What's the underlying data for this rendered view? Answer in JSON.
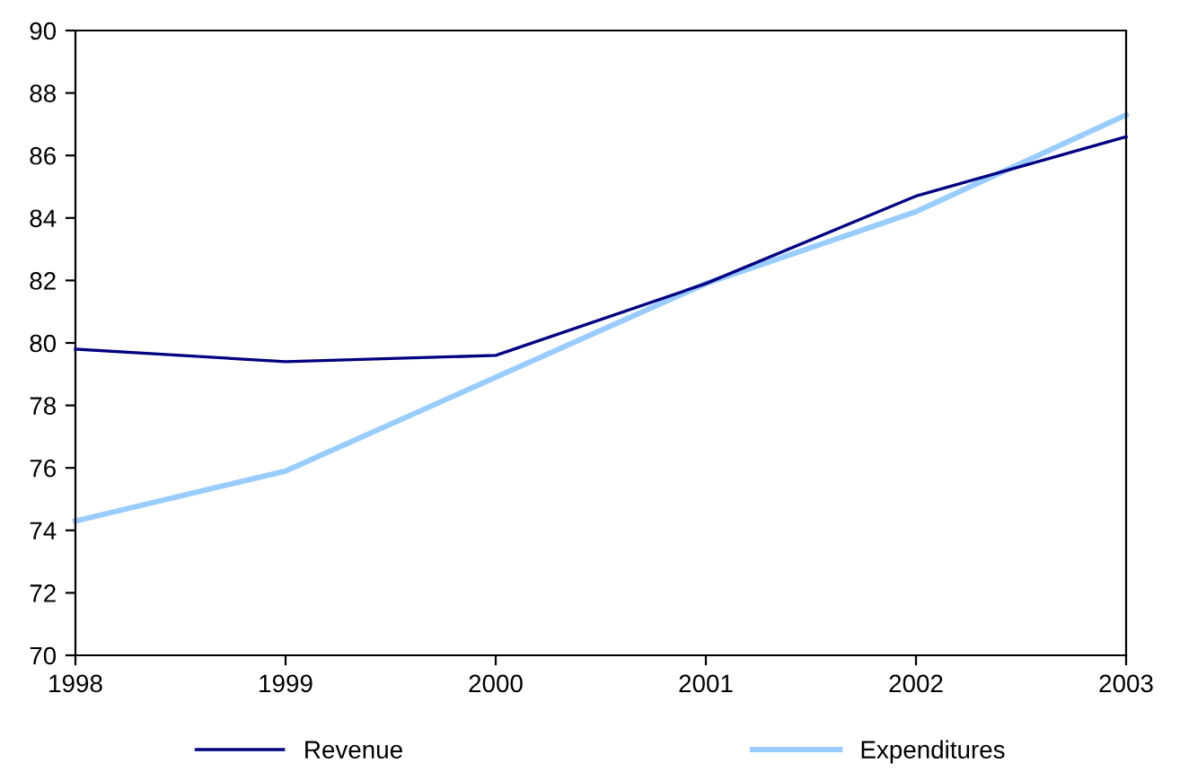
{
  "chart_data": {
    "type": "line",
    "x": [
      1998,
      1999,
      2000,
      2001,
      2002,
      2003
    ],
    "series": [
      {
        "name": "Revenue",
        "color": "#000080",
        "values": [
          79.8,
          79.4,
          79.6,
          81.9,
          84.7,
          86.6
        ]
      },
      {
        "name": "Expenditures",
        "color": "#99ccff",
        "values": [
          74.3,
          75.9,
          78.9,
          81.9,
          84.2,
          87.3
        ]
      }
    ],
    "xlim": [
      1998,
      2003
    ],
    "xticks": [
      1998,
      1999,
      2000,
      2001,
      2002,
      2003
    ],
    "ylim": [
      70,
      90
    ],
    "yticks": [
      70,
      72,
      74,
      76,
      78,
      80,
      82,
      84,
      86,
      88,
      90
    ],
    "grid": false,
    "legend": "bottom",
    "marker": "none",
    "line_style": "solid"
  }
}
